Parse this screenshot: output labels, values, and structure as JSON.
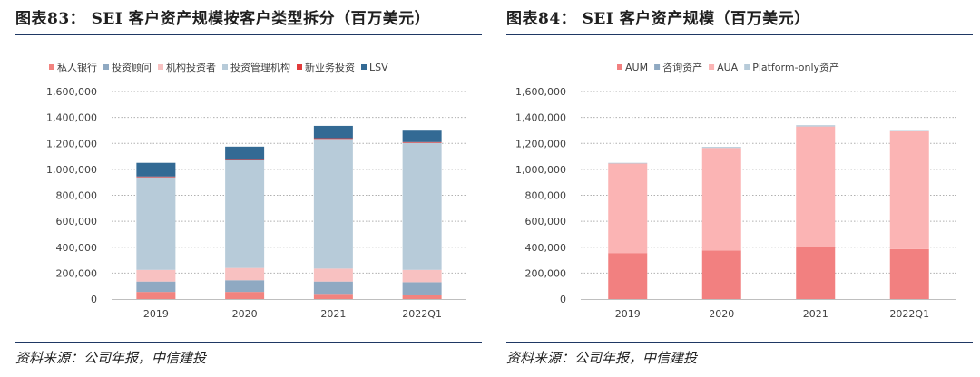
{
  "source_text": "资料来源：公司年报，中信建投",
  "chart_data": [
    {
      "type": "stacked-bar",
      "title": "图表83： SEI 客户资产规模按客户类型拆分（百万美元）",
      "source": "资料来源：公司年报，中信建投",
      "categories": [
        "2019",
        "2020",
        "2021",
        "2022Q1"
      ],
      "ylim": [
        0,
        1600000
      ],
      "yticks": [
        "0",
        "200,000",
        "400,000",
        "600,000",
        "800,000",
        "1,000,000",
        "1,200,000",
        "1,400,000",
        "1,600,000"
      ],
      "legend_position": "top",
      "series": [
        {
          "name": "私人银行",
          "color": "#f2837f",
          "values": [
            55000,
            55000,
            40000,
            35000
          ]
        },
        {
          "name": "投资顾问",
          "color": "#8fa9c2",
          "values": [
            80000,
            90000,
            95000,
            95000
          ]
        },
        {
          "name": "机构投资者",
          "color": "#f8c1c1",
          "values": [
            90000,
            95000,
            100000,
            95000
          ]
        },
        {
          "name": "投资管理机构",
          "color": "#b7cbd9",
          "values": [
            715000,
            835000,
            1000000,
            980000
          ]
        },
        {
          "name": "新业务投资",
          "color": "#e23b3b",
          "values": [
            5000,
            5000,
            5000,
            5000
          ]
        },
        {
          "name": "LSV",
          "color": "#336a94",
          "values": [
            105000,
            95000,
            95000,
            95000
          ]
        }
      ]
    },
    {
      "type": "stacked-bar",
      "title": "图表84： SEI 客户资产规模（百万美元）",
      "source": "资料来源：公司年报，中信建投",
      "categories": [
        "2019",
        "2020",
        "2021",
        "2022Q1"
      ],
      "ylim": [
        0,
        1600000
      ],
      "yticks": [
        "0",
        "200,000",
        "400,000",
        "600,000",
        "800,000",
        "1,000,000",
        "1,200,000",
        "1,400,000",
        "1,600,000"
      ],
      "legend_position": "top",
      "series": [
        {
          "name": "AUM",
          "color": "#f28080",
          "values": [
            355000,
            375000,
            405000,
            385000
          ]
        },
        {
          "name": "咨询资产",
          "color": "#8fa9c2",
          "values": [
            0,
            0,
            0,
            0
          ]
        },
        {
          "name": "AUA",
          "color": "#fbb4b4",
          "values": [
            690000,
            790000,
            925000,
            910000
          ]
        },
        {
          "name": "Platform-only资产",
          "color": "#b7cbd9",
          "values": [
            5000,
            8000,
            10000,
            8000
          ]
        }
      ]
    }
  ]
}
